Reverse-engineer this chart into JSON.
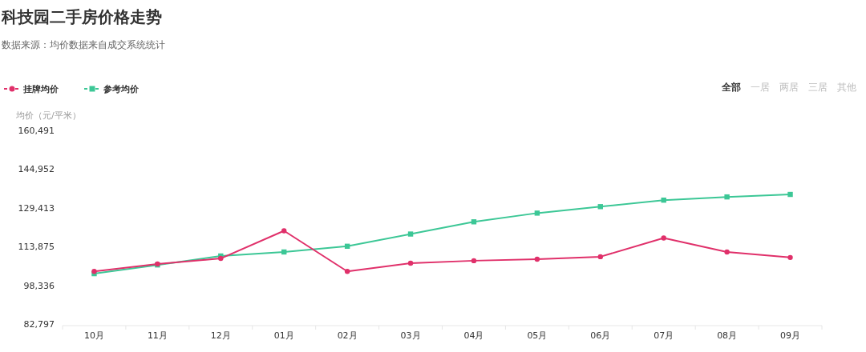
{
  "chart_data": {
    "type": "line",
    "title": "科技园二手房价格走势",
    "subtitle": "数据来源：均价数据来自成交系统统计",
    "ylabel": "均价（元/平米）",
    "annotations": [
      "全部",
      "一居",
      "两居",
      "三居",
      "其他"
    ],
    "categories": [
      "10月",
      "11月",
      "12月",
      "01月",
      "02月",
      "03月",
      "04月",
      "05月",
      "06月",
      "07月",
      "08月",
      "09月"
    ],
    "series": [
      {
        "name": "挂牌均价",
        "color": "#e0306a",
        "marker": "circle",
        "values": [
          103900,
          106900,
          109100,
          120200,
          103900,
          107200,
          108200,
          108800,
          109800,
          117300,
          111700,
          109500
        ]
      },
      {
        "name": "参考均价",
        "color": "#3cc796",
        "marker": "square",
        "values": [
          103000,
          106500,
          110100,
          111700,
          114000,
          118900,
          123800,
          127300,
          129900,
          132500,
          133800,
          134800
        ]
      }
    ],
    "ylim": [
      82797,
      160491
    ],
    "yticks": [
      {
        "value": 82797,
        "label": "82,797"
      },
      {
        "value": 98336,
        "label": "98,336"
      },
      {
        "value": 113875,
        "label": "113,875"
      },
      {
        "value": 129413,
        "label": "129,413"
      },
      {
        "value": 144952,
        "label": "144,952"
      },
      {
        "value": 160491,
        "label": "160,491"
      }
    ],
    "grid": false,
    "legend": "top left"
  }
}
